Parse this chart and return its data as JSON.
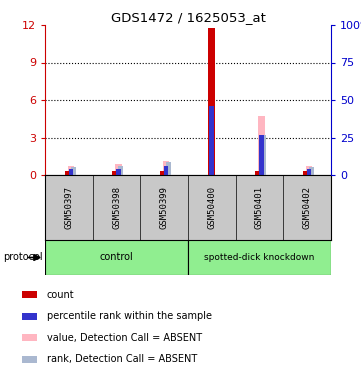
{
  "title": "GDS1472 / 1625053_at",
  "samples": [
    "GSM50397",
    "GSM50398",
    "GSM50399",
    "GSM50400",
    "GSM50401",
    "GSM50402"
  ],
  "ylim_left": [
    0,
    12
  ],
  "ylim_right": [
    0,
    100
  ],
  "yticks_left": [
    0,
    3,
    6,
    9,
    12
  ],
  "ytick_labels_left": [
    "0",
    "3",
    "6",
    "9",
    "12"
  ],
  "yticks_right": [
    0,
    25,
    50,
    75,
    100
  ],
  "ytick_labels_right": [
    "0",
    "25",
    "50",
    "75",
    "100%"
  ],
  "left_axis_color": "#cc0000",
  "right_axis_color": "#0000cc",
  "bar_data": {
    "GSM50397": {
      "count": 0.3,
      "rank": 0.5,
      "value_absent": 0.7,
      "rank_absent": 0.65
    },
    "GSM50398": {
      "count": 0.3,
      "rank": 0.5,
      "value_absent": 0.85,
      "rank_absent": 0.75
    },
    "GSM50399": {
      "count": 0.3,
      "rank": 0.75,
      "value_absent": 1.1,
      "rank_absent": 1.05
    },
    "GSM50400": {
      "count": 11.8,
      "rank": 5.5,
      "value_absent": 0,
      "rank_absent": 0
    },
    "GSM50401": {
      "count": 0.3,
      "rank": 3.2,
      "value_absent": 4.7,
      "rank_absent": 3.2
    },
    "GSM50402": {
      "count": 0.3,
      "rank": 0.5,
      "value_absent": 0.7,
      "rank_absent": 0.65
    }
  },
  "colors": {
    "count": "#cc0000",
    "rank": "#3333cc",
    "value_absent": "#ffb6c1",
    "rank_absent": "#aab8d0"
  },
  "background_label": "#c8c8c8",
  "group_color": "#90EE90",
  "legend_items": [
    {
      "label": "count",
      "color": "#cc0000"
    },
    {
      "label": "percentile rank within the sample",
      "color": "#3333cc"
    },
    {
      "label": "value, Detection Call = ABSENT",
      "color": "#ffb6c1"
    },
    {
      "label": "rank, Detection Call = ABSENT",
      "color": "#aab8d0"
    }
  ]
}
